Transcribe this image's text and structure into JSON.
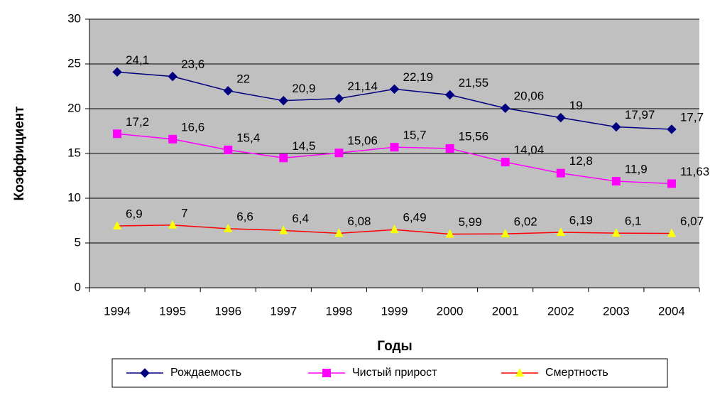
{
  "chart_data": {
    "type": "line",
    "x_label": "Годы",
    "y_label": "Коэффициент",
    "categories": [
      "1994",
      "1995",
      "1996",
      "1997",
      "1998",
      "1999",
      "2000",
      "2001",
      "2002",
      "2003",
      "2004"
    ],
    "series": [
      {
        "name": "Рождаемость",
        "color": "#000080",
        "marker": "diamond",
        "marker_color": "#000080",
        "values": [
          24.1,
          23.6,
          22,
          20.9,
          21.14,
          22.19,
          21.55,
          20.06,
          19,
          17.97,
          17.7
        ],
        "value_labels": [
          "24,1",
          "23,6",
          "22",
          "20,9",
          "21,14",
          "22,19",
          "21,55",
          "20,06",
          "19",
          "17,97",
          "17,7"
        ]
      },
      {
        "name": "Чистый прирост",
        "color": "#ff00ff",
        "marker": "square",
        "marker_color": "#ff00ff",
        "values": [
          17.2,
          16.6,
          15.4,
          14.5,
          15.06,
          15.7,
          15.56,
          14.04,
          12.8,
          11.9,
          11.63
        ],
        "value_labels": [
          "17,2",
          "16,6",
          "15,4",
          "14,5",
          "15,06",
          "15,7",
          "15,56",
          "14,04",
          "12,8",
          "11,9",
          "11,63"
        ]
      },
      {
        "name": "Смертность",
        "color": "#ff0000",
        "marker": "triangle",
        "marker_color": "#ffff00",
        "values": [
          6.9,
          7,
          6.6,
          6.4,
          6.08,
          6.49,
          5.99,
          6.02,
          6.19,
          6.1,
          6.07
        ],
        "value_labels": [
          "6,9",
          "7",
          "6,6",
          "6,4",
          "6,08",
          "6,49",
          "5,99",
          "6,02",
          "6,19",
          "6,1",
          "6,07"
        ]
      }
    ],
    "ylim": [
      0,
      30
    ],
    "yticks": [
      0,
      5,
      10,
      15,
      20,
      25,
      30
    ],
    "grid": true,
    "plot_background": "#c0c0c0",
    "legend": "bottom"
  }
}
